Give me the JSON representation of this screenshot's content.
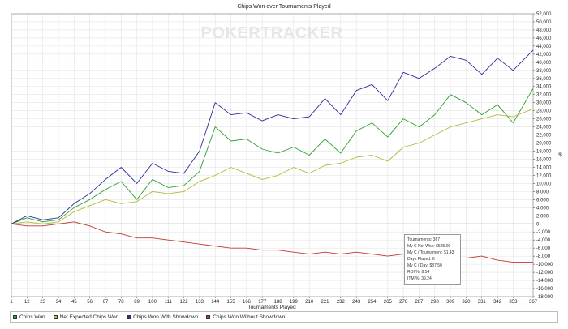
{
  "chart_data": {
    "type": "line",
    "title": "Chips Won over Tournaments Played",
    "xlabel": "Tournaments Played",
    "ylabel": "$",
    "watermark": "POKERTRACKER",
    "x_ticks": [
      1,
      12,
      23,
      34,
      45,
      56,
      67,
      78,
      89,
      100,
      111,
      122,
      133,
      144,
      155,
      166,
      177,
      188,
      199,
      210,
      221,
      232,
      243,
      254,
      265,
      276,
      287,
      298,
      309,
      320,
      331,
      342,
      353,
      367
    ],
    "y_ticks": [
      52000,
      50000,
      48000,
      46000,
      44000,
      42000,
      40000,
      38000,
      36000,
      34000,
      32000,
      30000,
      28000,
      26000,
      24000,
      22000,
      20000,
      18000,
      16000,
      14000,
      12000,
      10000,
      8000,
      6000,
      4000,
      2000,
      0,
      -2000,
      -4000,
      -6000,
      -8000,
      -10000,
      -12000,
      -14000,
      -16000,
      -18000
    ],
    "y_tick_labels": [
      "52,000",
      "50,000",
      "48,000",
      "46,000",
      "44,000",
      "42,000",
      "40,000",
      "38,000",
      "36,000",
      "34,000",
      "32,000",
      "30,000",
      "28,000",
      "26,000",
      "24,000",
      "22,000",
      "20,000",
      "18,000",
      "16,000",
      "14,000",
      "12,000",
      "10,000",
      "8,000",
      "6,000",
      "4,000",
      "2,000",
      "0",
      "-2,000",
      "-4,000",
      "-6,000",
      "-8,000",
      "-10,000",
      "-12,000",
      "-14,000",
      "-16,000",
      "-18,000"
    ],
    "xlim": [
      1,
      367
    ],
    "ylim": [
      -18000,
      52000
    ],
    "grid": true,
    "legend_position": "bottom",
    "series": [
      {
        "name": "Chips Won",
        "color": "#2ca02c",
        "x": [
          1,
          12,
          23,
          34,
          45,
          56,
          67,
          78,
          89,
          100,
          111,
          122,
          133,
          144,
          155,
          166,
          177,
          188,
          199,
          210,
          221,
          232,
          243,
          254,
          265,
          276,
          287,
          298,
          309,
          320,
          331,
          342,
          353,
          367
        ],
        "y": [
          0,
          1500,
          500,
          1000,
          4000,
          6000,
          8500,
          10500,
          6000,
          11000,
          9000,
          9500,
          13000,
          24000,
          20500,
          21000,
          18500,
          17500,
          19000,
          17000,
          21000,
          17500,
          23000,
          25000,
          21500,
          26000,
          24000,
          27000,
          32000,
          30000,
          27000,
          29500,
          25000,
          33500
        ]
      },
      {
        "name": "Net Expected Chips Won",
        "color": "#b5b83a",
        "x": [
          1,
          12,
          23,
          34,
          45,
          56,
          67,
          78,
          89,
          100,
          111,
          122,
          133,
          144,
          155,
          166,
          177,
          188,
          199,
          210,
          221,
          232,
          243,
          254,
          265,
          276,
          287,
          298,
          309,
          320,
          331,
          342,
          353,
          367
        ],
        "y": [
          0,
          500,
          0,
          500,
          3000,
          4500,
          6000,
          5000,
          5500,
          8000,
          7500,
          8000,
          10500,
          12000,
          14000,
          12500,
          11000,
          12000,
          14000,
          12500,
          14500,
          15000,
          16500,
          17000,
          15500,
          19000,
          20000,
          22000,
          24000,
          25000,
          26000,
          27000,
          26500,
          28500
        ]
      },
      {
        "name": "Chips Won With Showdown",
        "color": "#2b2b9e",
        "x": [
          1,
          12,
          23,
          34,
          45,
          56,
          67,
          78,
          89,
          100,
          111,
          122,
          133,
          144,
          155,
          166,
          177,
          188,
          199,
          210,
          221,
          232,
          243,
          254,
          265,
          276,
          287,
          298,
          309,
          320,
          331,
          342,
          353,
          367
        ],
        "y": [
          0,
          2000,
          1000,
          1500,
          5000,
          7500,
          11000,
          14000,
          10000,
          15000,
          13000,
          12500,
          18000,
          30000,
          27000,
          27500,
          25500,
          27000,
          26000,
          26500,
          31000,
          27000,
          33000,
          34500,
          30500,
          37500,
          36000,
          38500,
          41500,
          40500,
          37000,
          41000,
          38000,
          43000
        ]
      },
      {
        "name": "Chips Won Without Showdown",
        "color": "#c0392b",
        "x": [
          1,
          12,
          23,
          34,
          45,
          56,
          67,
          78,
          89,
          100,
          111,
          122,
          133,
          144,
          155,
          166,
          177,
          188,
          199,
          210,
          221,
          232,
          243,
          254,
          265,
          276,
          287,
          298,
          309,
          320,
          331,
          342,
          353,
          367
        ],
        "y": [
          0,
          -500,
          -500,
          0,
          500,
          -500,
          -2000,
          -2500,
          -3500,
          -3500,
          -4000,
          -4500,
          -5000,
          -5500,
          -6000,
          -6000,
          -6500,
          -6500,
          -7000,
          -7500,
          -7000,
          -7500,
          -7000,
          -7500,
          -8000,
          -7500,
          -8500,
          -8000,
          -8500,
          -8500,
          -8000,
          -9000,
          -9500,
          -9500
        ]
      }
    ]
  },
  "tooltip": {
    "lines": [
      "Tournaments: 367",
      "My C Net Won: $525.00",
      "My C / Tournament: $1.43",
      "Days Played: 6",
      "My C / Day: $87.50",
      "ROI %: 8.54",
      "ITM %: 39.24"
    ]
  }
}
